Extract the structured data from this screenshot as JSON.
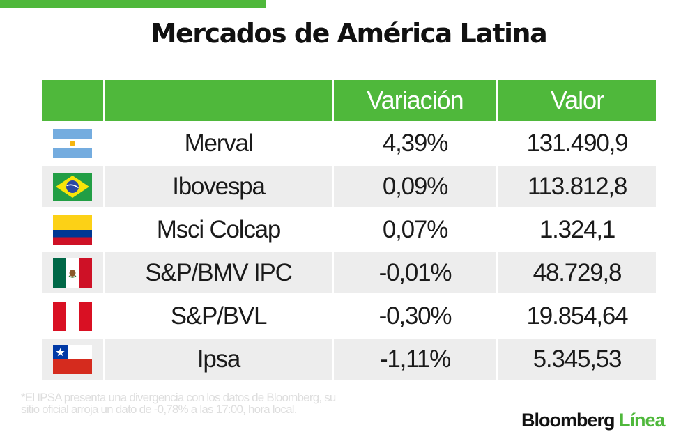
{
  "title": "Mercados de América Latina",
  "table": {
    "headers": {
      "flag": "",
      "name": "",
      "variation": "Variación",
      "value": "Valor"
    },
    "rows": [
      {
        "flag_icon": "argentina-flag-icon",
        "name": "Merval",
        "variation": "4,39%",
        "value": "131.490,9"
      },
      {
        "flag_icon": "brazil-flag-icon",
        "name": "Ibovespa",
        "variation": "0,09%",
        "value": "113.812,8"
      },
      {
        "flag_icon": "colombia-flag-icon",
        "name": "Msci Colcap",
        "variation": "0,07%",
        "value": "1.324,1"
      },
      {
        "flag_icon": "mexico-flag-icon",
        "name": "S&P/BMV IPC",
        "variation": "-0,01%",
        "value": "48.729,8"
      },
      {
        "flag_icon": "peru-flag-icon",
        "name": "S&P/BVL",
        "variation": "-0,30%",
        "value": "19.854,64"
      },
      {
        "flag_icon": "chile-flag-icon",
        "name": "Ipsa",
        "variation": "-1,11%",
        "value": "5.345,53"
      }
    ]
  },
  "footnote": "*El IPSA presenta una divergencia con los datos de Bloomberg, su sitio oficial arroja un dato de -0,78% a las 17:00, hora local.",
  "logo": {
    "brand": "Bloomberg",
    "accent": "Línea"
  },
  "colors": {
    "accent": "#4fb83b",
    "stripe": "#ededed"
  }
}
